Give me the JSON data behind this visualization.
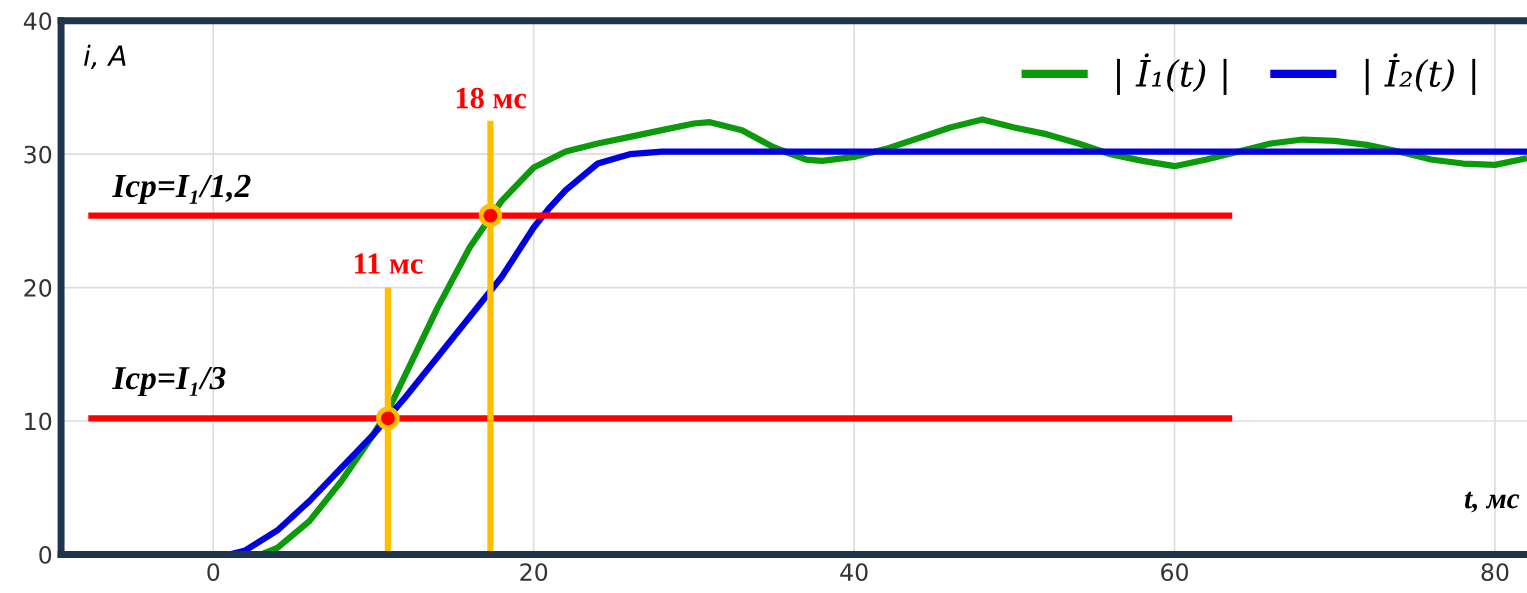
{
  "chart_data": {
    "type": "line",
    "xlabel": "t, мс",
    "ylabel": "i, A",
    "xlim": [
      -9.5,
      82
    ],
    "ylim": [
      0,
      40
    ],
    "xticks": [
      0,
      20,
      40,
      60,
      80
    ],
    "yticks": [
      0,
      10,
      20,
      30,
      40
    ],
    "grid": true,
    "legend": "top right",
    "series": [
      {
        "name": "| İ₁(t) |",
        "color": "#0a9a0a",
        "x": [
          -9.5,
          0,
          3,
          4,
          6,
          8,
          10,
          11,
          12,
          14,
          16,
          18,
          20,
          22,
          24,
          26,
          28,
          30,
          31,
          33,
          35,
          37,
          38,
          40,
          42,
          44,
          46,
          48,
          50,
          52,
          54,
          56,
          58,
          60,
          62,
          64,
          66,
          68,
          70,
          72,
          74,
          76,
          78,
          80,
          82
        ],
        "values": [
          0,
          0,
          0,
          0.5,
          2.5,
          5.5,
          9,
          11,
          13.5,
          18.5,
          23,
          26.5,
          29,
          30.2,
          30.8,
          31.3,
          31.8,
          32.3,
          32.4,
          31.8,
          30.5,
          29.6,
          29.5,
          29.8,
          30.4,
          31.2,
          32,
          32.6,
          32,
          31.5,
          30.8,
          30,
          29.5,
          29.1,
          29.6,
          30.2,
          30.8,
          31.1,
          31,
          30.7,
          30.2,
          29.6,
          29.3,
          29.2,
          29.7
        ]
      },
      {
        "name": "| İ₂(t) |",
        "color": "#0000e0",
        "x": [
          -9.5,
          0,
          1,
          2,
          4,
          6,
          8,
          10,
          12,
          14,
          16,
          18,
          20,
          21,
          22,
          24,
          26,
          28,
          82
        ],
        "values": [
          0,
          0,
          0,
          0.3,
          1.8,
          4,
          6.5,
          9,
          11.8,
          14.8,
          17.8,
          20.8,
          24.5,
          26,
          27.3,
          29.3,
          30,
          30.2,
          30.2
        ]
      },
      {
        "color": "#ff0000",
        "x": [
          -7.8,
          63.6
        ],
        "values": [
          25.4,
          25.4
        ]
      },
      {
        "color": "#ff0000",
        "x": [
          -7.8,
          63.6
        ],
        "values": [
          10.2,
          10.2
        ]
      },
      {
        "color": "#ffbf00",
        "x": [
          10.9,
          10.9
        ],
        "values": [
          0,
          20
        ]
      },
      {
        "color": "#ffbf00",
        "x": [
          17.3,
          17.3
        ],
        "values": [
          0,
          32.5
        ]
      },
      {
        "type": "scatter",
        "color": "#ff0000",
        "x": [
          10.9,
          17.3
        ],
        "values": [
          10.2,
          25.4
        ]
      }
    ],
    "annotations": [
      "Icp=I₁/1,2",
      "Icp=I₁/3",
      "11 мс",
      "18 мс"
    ]
  }
}
